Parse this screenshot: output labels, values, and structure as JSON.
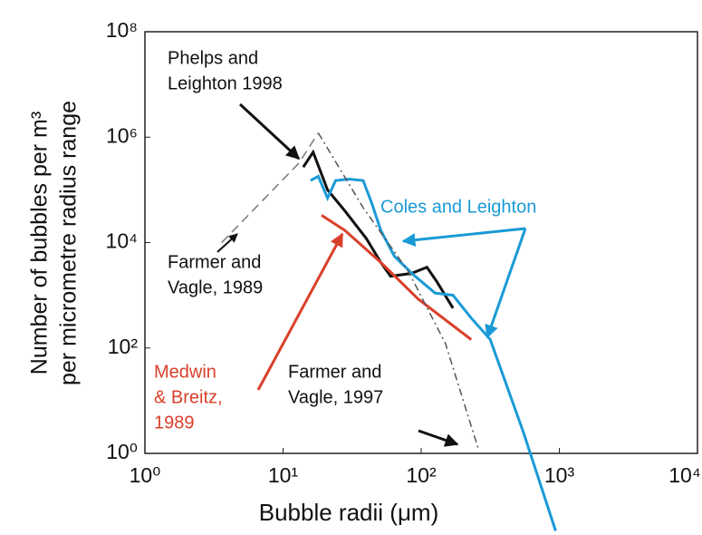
{
  "chart_data": {
    "type": "line",
    "x_label": "Bubble radii (μm)",
    "y_label": [
      "Number of bubbles per m³",
      "per micrometre radius range"
    ],
    "xlog": true,
    "ylog": true,
    "xlim": [
      1,
      10000
    ],
    "ylim": [
      1,
      100000000
    ],
    "xticks": [
      {
        "value": 1,
        "label": "10⁰"
      },
      {
        "value": 10,
        "label": "10¹"
      },
      {
        "value": 100,
        "label": "10²"
      },
      {
        "value": 1000,
        "label": "10³"
      },
      {
        "value": 10000,
        "label": "10⁴"
      }
    ],
    "yticks": [
      {
        "value": 1,
        "label": "10⁰"
      },
      {
        "value": 100,
        "label": "10²"
      },
      {
        "value": 10000,
        "label": "10⁴"
      },
      {
        "value": 1000000,
        "label": "10⁶"
      },
      {
        "value": 100000000,
        "label": "10⁸"
      }
    ],
    "series": [
      {
        "color": "#111111",
        "style": "solid",
        "x": [
          14,
          16.5,
          21,
          28,
          40,
          51,
          60,
          85,
          110,
          130,
          170
        ],
        "values": [
          270000,
          520000,
          100000,
          40000,
          12000,
          4200,
          2300,
          2600,
          3400,
          1800,
          570
        ]
      },
      {
        "color": "#1a9ad6",
        "style": "solid",
        "x": [
          15.8,
          18,
          21,
          24,
          30,
          38,
          44,
          51,
          64,
          87,
          126,
          170,
          230,
          316,
          550,
          940
        ],
        "values": [
          150000,
          180000,
          70000,
          150000,
          160000,
          150000,
          55000,
          17000,
          5500,
          2500,
          1100,
          1000,
          370,
          145,
          2.5,
          0.034
        ]
      },
      {
        "color": "#d9402a",
        "style": "solid",
        "x": [
          19,
          28,
          51,
          95,
          230
        ],
        "values": [
          33000,
          17000,
          4200,
          850,
          144
        ]
      },
      {
        "color": "#777777",
        "style": "dash",
        "x": [
          3.6,
          13,
          18
        ],
        "values": [
          10000,
          320000,
          1200000
        ]
      },
      {
        "color": "#555555",
        "style": "dashdot",
        "x": [
          18,
          38,
          81,
          150,
          230,
          260
        ],
        "values": [
          1200000,
          46000,
          2800,
          120,
          3.3,
          1.2
        ]
      }
    ],
    "annotations": [
      {
        "lines": [
          "Phelps and",
          "Leighton 1998"
        ],
        "color": "#111111"
      },
      {
        "lines": [
          "Coles and Leighton"
        ],
        "color": "#1a9ad6"
      },
      {
        "lines": [
          "Farmer and",
          "Vagle, 1989"
        ],
        "color": "#111111"
      },
      {
        "lines": [
          "Medwin",
          "& Breitz,",
          "1989"
        ],
        "color": "#d9402a"
      },
      {
        "lines": [
          "Farmer and",
          "Vagle, 1997"
        ],
        "color": "#111111"
      }
    ]
  }
}
